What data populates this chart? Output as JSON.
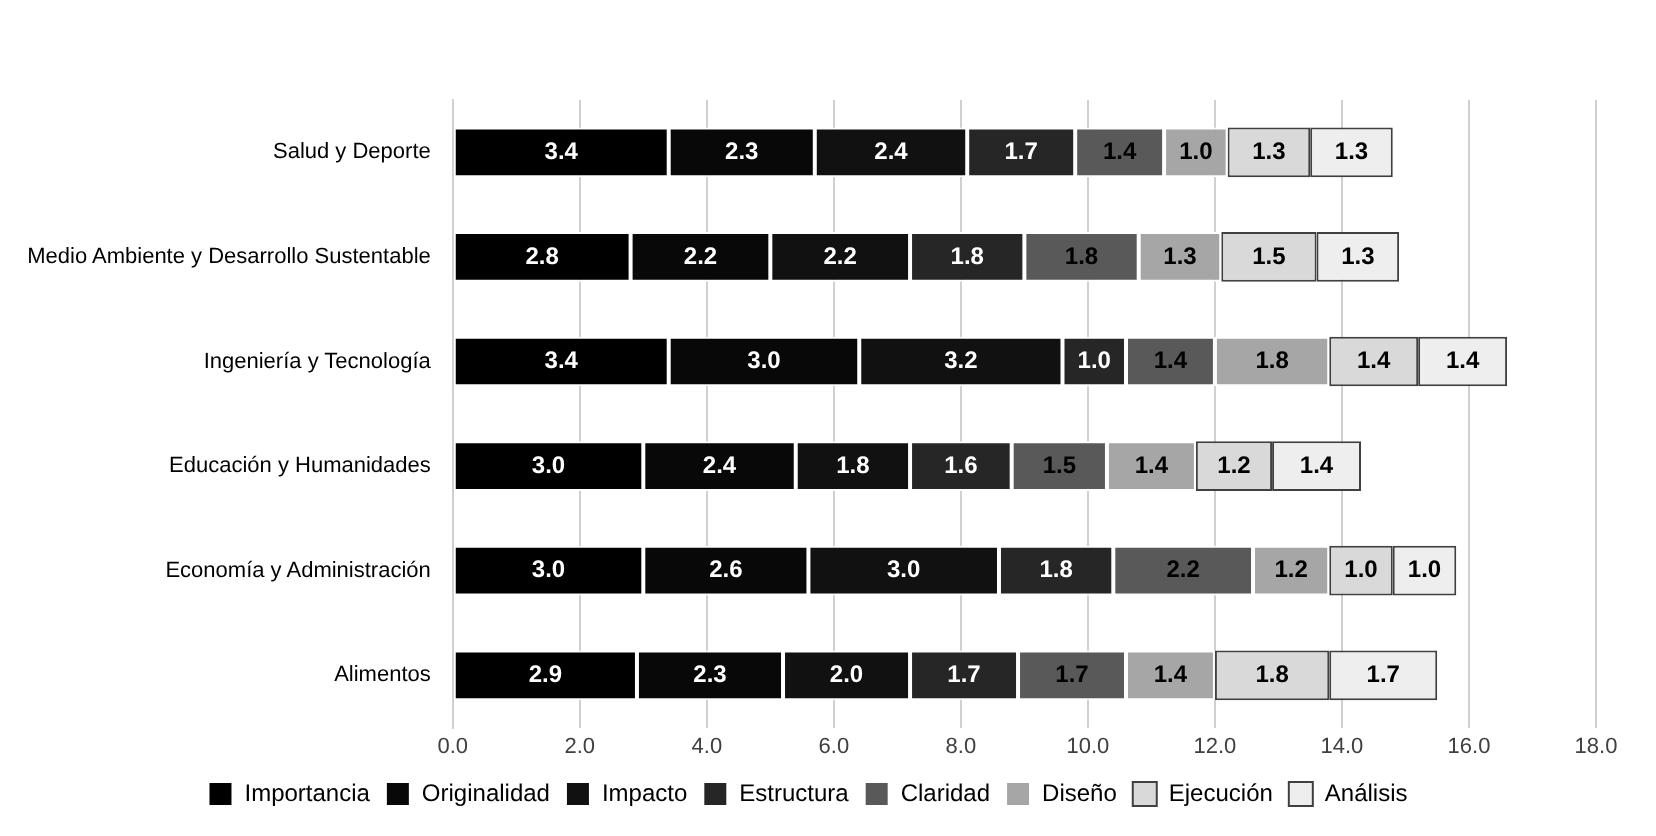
{
  "chart_data": {
    "type": "bar",
    "orientation": "horizontal",
    "stacked": true,
    "categories": [
      "Salud y Deporte",
      "Medio Ambiente y Desarrollo Sustentable",
      "Ingeniería y Tecnología",
      "Educación y Humanidades",
      "Economía y Administración",
      "Alimentos"
    ],
    "series": [
      {
        "name": "Importancia",
        "color": "#000000",
        "values": [
          3.4,
          2.8,
          3.4,
          3.0,
          3.0,
          2.9
        ],
        "value_labels": [
          "3.4",
          "2.8",
          "3.4",
          "3.0",
          "3.0",
          "2.9"
        ]
      },
      {
        "name": "Originalidad",
        "color": "#080808",
        "values": [
          2.3,
          2.2,
          3.0,
          2.4,
          2.6,
          2.3
        ],
        "value_labels": [
          "2.3",
          "2.2",
          "3.0",
          "2.4",
          "2.6",
          "2.3"
        ]
      },
      {
        "name": "Impacto",
        "color": "#111111",
        "values": [
          2.4,
          2.2,
          3.2,
          1.8,
          3.0,
          2.0
        ],
        "value_labels": [
          "2.4",
          "2.2",
          "3.2",
          "1.8",
          "3.0",
          "2.0"
        ]
      },
      {
        "name": "Estructura",
        "color": "#262626",
        "values": [
          1.7,
          1.8,
          1.0,
          1.6,
          1.8,
          1.7
        ],
        "value_labels": [
          "1.7",
          "1.8",
          "1.0",
          "1.6",
          "1.8",
          "1.7"
        ]
      },
      {
        "name": "Claridad",
        "color": "#595959",
        "values": [
          1.4,
          1.8,
          1.4,
          1.5,
          2.2,
          1.7
        ],
        "value_labels": [
          "1.4",
          "1.8",
          "1.4",
          "1.5",
          "2.2",
          "1.7"
        ]
      },
      {
        "name": "Diseño",
        "color": "#a6a6a6",
        "values": [
          1.0,
          1.3,
          1.8,
          1.4,
          1.2,
          1.4
        ],
        "value_labels": [
          "1.0",
          "1.3",
          "1.8",
          "1.4",
          "1.2",
          "1.4"
        ]
      },
      {
        "name": "Ejecución",
        "color": "#d9d9d9",
        "values": [
          1.3,
          1.5,
          1.4,
          1.2,
          1.0,
          1.8
        ],
        "value_labels": [
          "1.3",
          "1.5",
          "1.4",
          "1.2",
          "1.0",
          "1.8"
        ]
      },
      {
        "name": "Análisis",
        "color": "#eeeeee",
        "values": [
          1.3,
          1.3,
          1.4,
          1.4,
          1.0,
          1.7
        ],
        "value_labels": [
          "1.3",
          "1.3",
          "1.4",
          "1.4",
          "1.0",
          "1.7"
        ]
      }
    ],
    "xlim": [
      0,
      18
    ],
    "xticks": [
      {
        "value": 0,
        "label": "0.0"
      },
      {
        "value": 2,
        "label": "2.0"
      },
      {
        "value": 4,
        "label": "4.0"
      },
      {
        "value": 6,
        "label": "6.0"
      },
      {
        "value": 8,
        "label": "8.0"
      },
      {
        "value": 10,
        "label": "10.0"
      },
      {
        "value": 12,
        "label": "12.0"
      },
      {
        "value": 14,
        "label": "14.0"
      },
      {
        "value": 16,
        "label": "16.0"
      },
      {
        "value": 18,
        "label": "18.0"
      }
    ],
    "grid": "x",
    "legend": "bottom"
  }
}
